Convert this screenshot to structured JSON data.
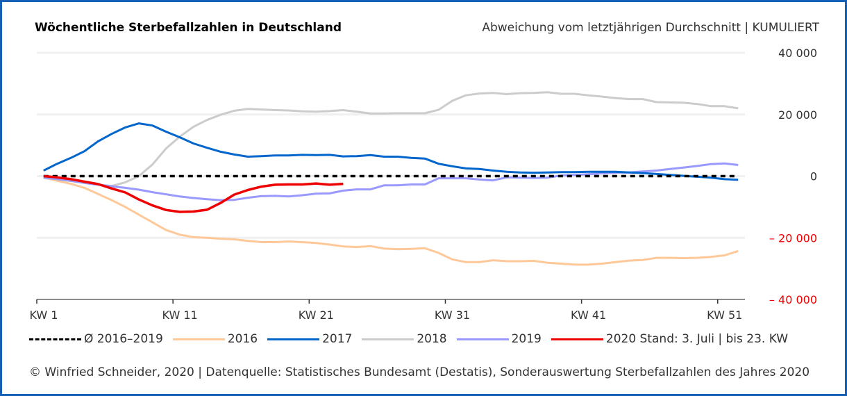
{
  "header": {
    "title": "Wöchentliche Sterbefallzahlen in Deutschland",
    "subtitle": "Abweichung vom letztjährigen Durchschnitt | KUMULIERT"
  },
  "footer": {
    "source": "© Winfried Schneider, 2020 | Datenquelle: Statistisches Bundesamt (Destatis), Sonderauswertung Sterbefallzahlen des Jahres 2020"
  },
  "chart_data": {
    "type": "line",
    "title": "Wöchentliche Sterbefallzahlen in Deutschland",
    "subtitle": "Abweichung vom letztjährigen Durchschnitt | KUMULIERT",
    "xlabel": "",
    "ylabel": "",
    "x_tick_labels": [
      "KW 1",
      "KW 11",
      "KW 21",
      "KW 31",
      "KW 41",
      "KW 51"
    ],
    "x_tick_weeks": [
      1,
      11,
      21,
      31,
      41,
      51
    ],
    "x_range": [
      1,
      52
    ],
    "ylim": [
      -40000,
      40000
    ],
    "y_ticks": [
      {
        "value": 40000,
        "label": "40 000",
        "color": "#333333"
      },
      {
        "value": 20000,
        "label": "20 000",
        "color": "#333333"
      },
      {
        "value": 0,
        "label": "0",
        "color": "#333333"
      },
      {
        "value": -20000,
        "label": "– 20 000",
        "color": "#ee0000"
      },
      {
        "value": -40000,
        "label": "– 40 000",
        "color": "#ee0000"
      }
    ],
    "grid": true,
    "y_axis_position": "right",
    "legend_position": "bottom",
    "series": [
      {
        "name": "Ø 2016–2019",
        "key": "avg",
        "color": "#000000",
        "dashed": true,
        "values": [
          0,
          0,
          0,
          0,
          0,
          0,
          0,
          0,
          0,
          0,
          0,
          0,
          0,
          0,
          0,
          0,
          0,
          0,
          0,
          0,
          0,
          0,
          0,
          0,
          0,
          0,
          0,
          0,
          0,
          0,
          0,
          0,
          0,
          0,
          0,
          0,
          0,
          0,
          0,
          0,
          0,
          0,
          0,
          0,
          0,
          0,
          0,
          0,
          0,
          0,
          0,
          0
        ]
      },
      {
        "name": "2016",
        "key": "y2016",
        "color": "#ffc898",
        "dashed": false,
        "values": [
          -500,
          -1500,
          -2500,
          -3800,
          -5800,
          -7800,
          -10000,
          -12500,
          -15000,
          -17500,
          -19000,
          -19800,
          -20000,
          -20300,
          -20500,
          -21000,
          -21400,
          -21400,
          -21200,
          -21400,
          -21700,
          -22200,
          -22800,
          -23000,
          -22700,
          -23500,
          -23700,
          -23600,
          -23400,
          -24900,
          -27000,
          -27900,
          -27900,
          -27300,
          -27600,
          -27600,
          -27500,
          -28100,
          -28400,
          -28700,
          -28700,
          -28400,
          -27900,
          -27400,
          -27200,
          -26500,
          -26500,
          -26600,
          -26500,
          -26200,
          -25700,
          -24300
        ]
      },
      {
        "name": "2017",
        "key": "y2017",
        "color": "#0066cc",
        "dashed": false,
        "values": [
          1800,
          4000,
          5900,
          8100,
          11300,
          13700,
          15800,
          17100,
          16400,
          14400,
          12600,
          10600,
          9200,
          7900,
          7000,
          6300,
          6500,
          6700,
          6700,
          6900,
          6800,
          6900,
          6400,
          6500,
          6800,
          6300,
          6300,
          5900,
          5700,
          4000,
          3200,
          2500,
          2300,
          1800,
          1400,
          1200,
          1100,
          1200,
          1300,
          1300,
          1400,
          1400,
          1400,
          1200,
          1000,
          700,
          400,
          100,
          -200,
          -500,
          -1000,
          -1200
        ]
      },
      {
        "name": "2018",
        "key": "y2018",
        "color": "#cccccc",
        "dashed": false,
        "values": [
          -500,
          -1000,
          -1600,
          -2200,
          -2800,
          -3200,
          -2000,
          0,
          3800,
          9000,
          12800,
          16000,
          18200,
          19900,
          21200,
          21800,
          21600,
          21400,
          21300,
          21000,
          20900,
          21100,
          21400,
          20900,
          20300,
          20300,
          20400,
          20400,
          20400,
          21500,
          24400,
          26200,
          26800,
          27000,
          26600,
          26900,
          27000,
          27200,
          26700,
          26700,
          26200,
          25800,
          25300,
          25000,
          25000,
          24000,
          23900,
          23800,
          23400,
          22700,
          22700,
          22000
        ]
      },
      {
        "name": "2019",
        "key": "y2019",
        "color": "#9999ff",
        "dashed": false,
        "values": [
          -500,
          -1000,
          -1500,
          -2200,
          -2800,
          -3300,
          -3800,
          -4400,
          -5200,
          -5900,
          -6600,
          -7100,
          -7500,
          -7800,
          -7700,
          -7000,
          -6500,
          -6400,
          -6600,
          -6200,
          -5700,
          -5600,
          -4700,
          -4300,
          -4300,
          -3000,
          -3000,
          -2700,
          -2700,
          -700,
          -700,
          -700,
          -1100,
          -1400,
          -400,
          -500,
          -600,
          -500,
          200,
          400,
          600,
          900,
          1100,
          1200,
          1500,
          1800,
          2300,
          2800,
          3300,
          3900,
          4100,
          3600
        ]
      },
      {
        "name": "2020 Stand: 3. Juli | bis 23. KW",
        "key": "y2020",
        "color": "#ee0000",
        "dashed": false,
        "values": [
          0,
          -400,
          -1000,
          -1800,
          -2600,
          -4000,
          -5300,
          -7600,
          -9500,
          -11000,
          -11600,
          -11500,
          -10900,
          -8700,
          -6000,
          -4500,
          -3400,
          -2800,
          -2700,
          -2700,
          -2400,
          -2800,
          -2500
        ]
      }
    ]
  }
}
